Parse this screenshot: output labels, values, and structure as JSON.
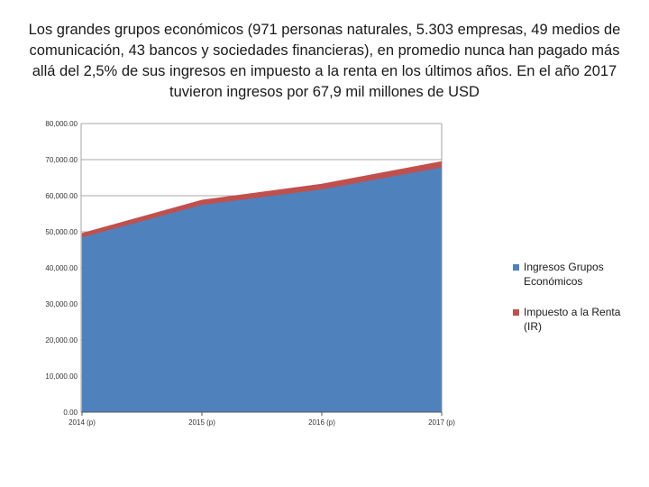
{
  "title": "Los grandes grupos económicos (971 personas naturales, 5.303 empresas, 49 medios de comunicación, 43 bancos y sociedades financieras), en promedio nunca han pagado más allá del 2,5% de sus ingresos en impuesto a la renta en los últimos años. En el año 2017 tuvieron ingresos por 67,9 mil millones de USD",
  "chart_data": {
    "type": "area",
    "stacked": true,
    "categories": [
      "2014 (p)",
      "2015 (p)",
      "2016 (p)",
      "2017 (p)"
    ],
    "series": [
      {
        "name": "Ingresos Grupos Económicos",
        "color": "#4f81bd",
        "values": [
          48500,
          57500,
          61800,
          67900
        ]
      },
      {
        "name": "Impuesto a la Renta (IR)",
        "color": "#c0504d",
        "values": [
          1100,
          1300,
          1450,
          1600
        ]
      }
    ],
    "yticks": [
      "0.00",
      "10,000.00",
      "20,000.00",
      "30,000.00",
      "40,000.00",
      "50,000.00",
      "60,000.00",
      "70,000.00",
      "80,000.00"
    ],
    "ylim": [
      0,
      80000
    ],
    "grid": true,
    "legend_position": "right"
  }
}
